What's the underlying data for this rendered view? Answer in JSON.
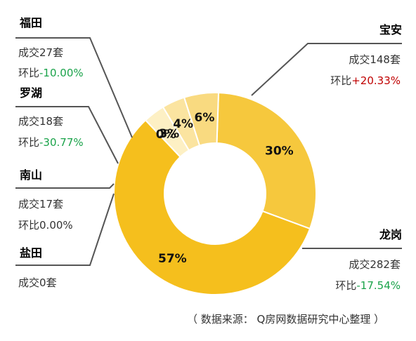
{
  "chart_data": {
    "type": "donut",
    "unit_prefix": "成交",
    "unit_suffix": "套",
    "mom_prefix": "环比",
    "districts": [
      {
        "name": "宝安",
        "deals": 148,
        "mom": "+20.33%",
        "mom_sign": "pos",
        "pct_label": "30%",
        "color": "#f6c83d"
      },
      {
        "name": "龙岗",
        "deals": 282,
        "mom": "-17.54%",
        "mom_sign": "neg",
        "pct_label": "57%",
        "color": "#f5bf1d"
      },
      {
        "name": "盐田",
        "deals": 0,
        "mom": "",
        "mom_sign": "zero",
        "pct_label": "0%",
        "color": "#fff4d2"
      },
      {
        "name": "南山",
        "deals": 17,
        "mom": "0.00%",
        "mom_sign": "zero",
        "pct_label": "3%",
        "color": "#fdf0c4"
      },
      {
        "name": "罗湖",
        "deals": 18,
        "mom": "-30.77%",
        "mom_sign": "neg",
        "pct_label": "4%",
        "color": "#fbe4a0"
      },
      {
        "name": "福田",
        "deals": 27,
        "mom": "-10.00%",
        "mom_sign": "neg",
        "pct_label": "6%",
        "color": "#f9da80"
      }
    ]
  },
  "source": "（ 数据来源： Q房网数据研究中心整理 ）"
}
